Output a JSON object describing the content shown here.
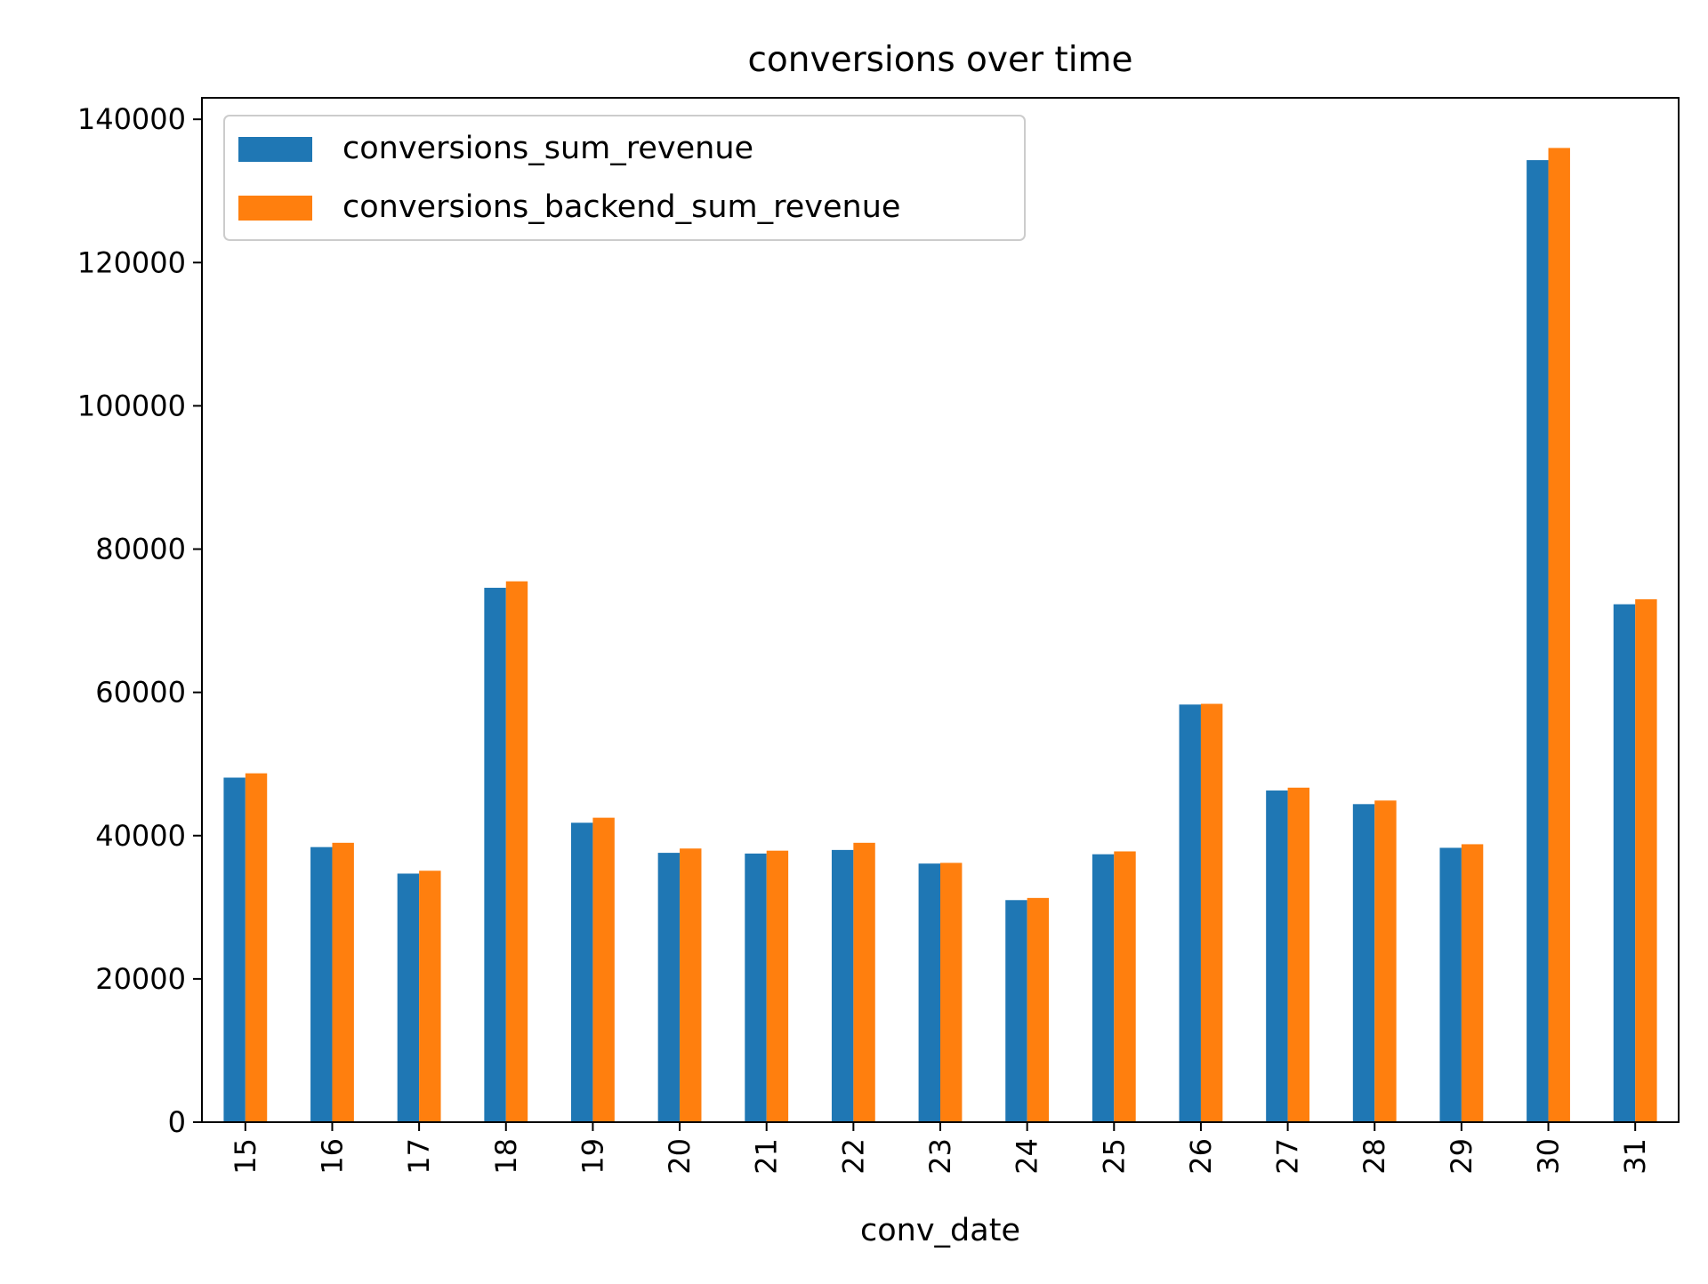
{
  "chart_data": {
    "type": "bar",
    "title": "conversions over time",
    "xlabel": "conv_date",
    "ylabel": "",
    "categories": [
      "15",
      "16",
      "17",
      "18",
      "19",
      "20",
      "21",
      "22",
      "23",
      "24",
      "25",
      "26",
      "27",
      "28",
      "29",
      "30",
      "31"
    ],
    "series": [
      {
        "name": "conversions_sum_revenue",
        "color": "#1f77b4",
        "values": [
          48100,
          38400,
          34700,
          74600,
          41800,
          37600,
          37500,
          38000,
          36100,
          31000,
          37400,
          58300,
          46300,
          44400,
          38300,
          134300,
          72300
        ]
      },
      {
        "name": "conversions_backend_sum_revenue",
        "color": "#ff7f0e",
        "values": [
          48700,
          39000,
          35100,
          75500,
          42500,
          38200,
          37900,
          39000,
          36200,
          31300,
          37800,
          58400,
          46700,
          44900,
          38800,
          136000,
          73000
        ]
      }
    ],
    "ylim": [
      0,
      143000
    ],
    "yticks": [
      0,
      20000,
      40000,
      60000,
      80000,
      100000,
      120000,
      140000
    ],
    "ytick_labels": [
      "0",
      "20000",
      "40000",
      "60000",
      "80000",
      "100000",
      "120000",
      "140000"
    ],
    "x_tick_rotation": "vertical",
    "grid": false,
    "legend_position": "upper-left"
  }
}
